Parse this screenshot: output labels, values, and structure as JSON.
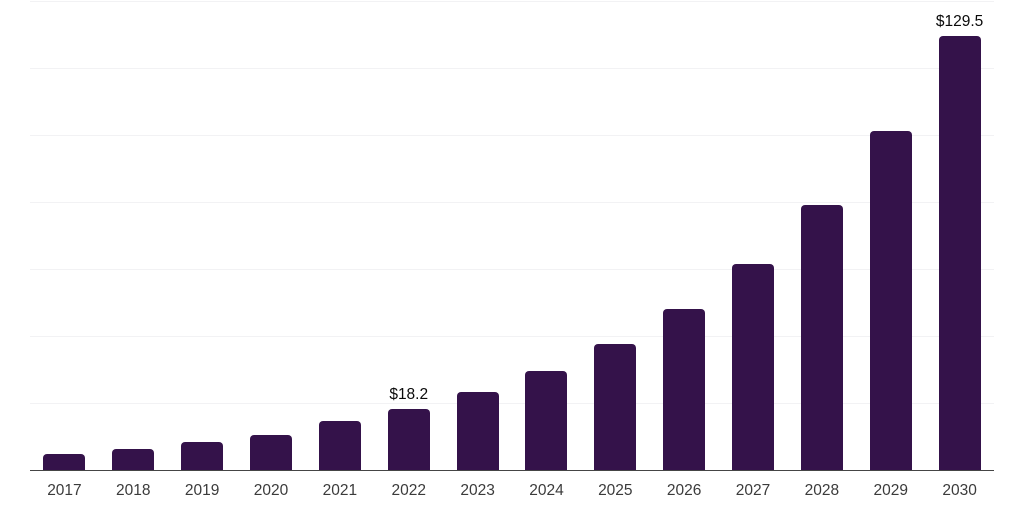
{
  "chart_data": {
    "type": "bar",
    "title": "",
    "xlabel": "",
    "ylabel": "",
    "categories": [
      "2017",
      "2018",
      "2019",
      "2020",
      "2021",
      "2022",
      "2023",
      "2024",
      "2025",
      "2026",
      "2027",
      "2028",
      "2029",
      "2030"
    ],
    "values": [
      4.8,
      6.2,
      8.3,
      10.4,
      14.5,
      18.2,
      23.2,
      29.6,
      37.7,
      48.0,
      61.5,
      79.0,
      101.2,
      129.5
    ],
    "data_labels": {
      "2022": "$18.2",
      "2030": "$129.5"
    },
    "ylim": [
      0,
      140
    ],
    "gridline_step": 20,
    "grid": true,
    "legend": false,
    "y_tick_labels_shown": false,
    "colors": {
      "bar": "#34124a",
      "gridline": "#f2f2f4",
      "axis_line": "#454545",
      "tick_label": "#3b3b3b",
      "data_label": "#0a0a0a",
      "background": "#ffffff"
    }
  }
}
